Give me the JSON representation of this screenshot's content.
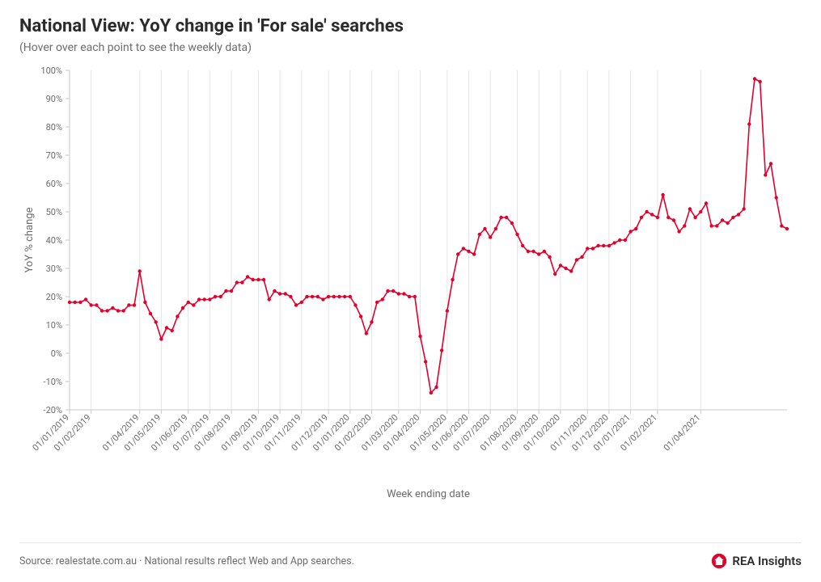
{
  "title": "National View: YoY change in 'For sale' searches",
  "subtitle": "(Hover over each point to see the weekly data)",
  "source": "Source: realestate.com.au · National results reflect Web and App searches.",
  "brand": "REA Insights",
  "chart": {
    "type": "line",
    "ylabel": "YoY % change",
    "xlabel": "Week ending date",
    "ylim": [
      -20,
      100
    ],
    "ytick_step": 10,
    "ytick_labels": [
      "-20%",
      "-10%",
      "0%",
      "10%",
      "20%",
      "30%",
      "40%",
      "50%",
      "60%",
      "70%",
      "80%",
      "90%",
      "100%"
    ],
    "xticks": [
      "01/01/2019",
      "01/02/2019",
      "01/04/2019",
      "01/05/2019",
      "01/06/2019",
      "01/07/2019",
      "01/08/2019",
      "01/09/2019",
      "01/10/2019",
      "01/11/2019",
      "01/12/2019",
      "01/01/2020",
      "01/02/2020",
      "01/03/2020",
      "01/04/2020",
      "01/05/2020",
      "01/06/2020",
      "01/07/2020",
      "01/08/2020",
      "01/09/2020",
      "01/10/2020",
      "01/11/2020",
      "01/12/2020",
      "01/01/2021",
      "01/02/2021",
      "01/04/2021"
    ],
    "xtick_indices": [
      0,
      4,
      13,
      17,
      22,
      26,
      30,
      35,
      39,
      43,
      48,
      52,
      56,
      61,
      65,
      70,
      74,
      78,
      83,
      87,
      91,
      96,
      100,
      104,
      109,
      117
    ],
    "line_color": "#e4002b",
    "marker_color": "#e4002b",
    "marker_size": 2.2,
    "line_width": 1.6,
    "grid_color": "#e5e5e5",
    "axis_color": "#c8c8c8",
    "label_color": "#6b6b6b",
    "label_fontsize": 11,
    "axis_label_fontsize": 13,
    "background_color": "#ffffff",
    "values": [
      18,
      18,
      18,
      19,
      17,
      17,
      15,
      15,
      16,
      15,
      15,
      17,
      17,
      29,
      18,
      14,
      11,
      5,
      9,
      8,
      13,
      16,
      18,
      17,
      19,
      19,
      19,
      20,
      20,
      22,
      22,
      25,
      25,
      27,
      26,
      26,
      26,
      19,
      22,
      21,
      21,
      20,
      17,
      18,
      20,
      20,
      20,
      19,
      20,
      20,
      20,
      20,
      20,
      17,
      13,
      7,
      11,
      18,
      19,
      22,
      22,
      21,
      21,
      20,
      20,
      6,
      -3,
      -14,
      -12,
      1,
      15,
      26,
      35,
      37,
      36,
      35,
      42,
      44,
      41,
      44,
      48,
      48,
      46,
      42,
      38,
      36,
      36,
      35,
      36,
      34,
      28,
      31,
      30,
      29,
      33,
      34,
      37,
      37,
      38,
      38,
      38,
      39,
      40,
      40,
      43,
      44,
      48,
      50,
      49,
      48,
      56,
      48,
      47,
      43,
      45,
      51,
      48,
      50,
      53,
      45,
      45,
      47,
      46,
      48,
      49,
      51,
      81,
      97,
      96,
      63,
      67,
      55,
      45,
      44
    ]
  }
}
